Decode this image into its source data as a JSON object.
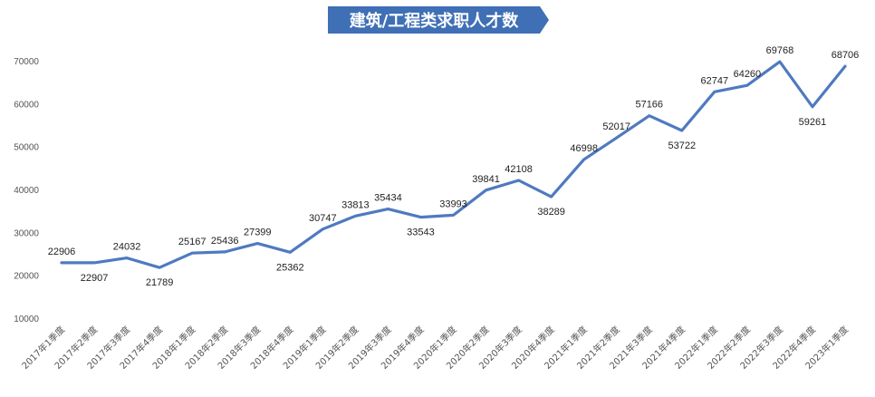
{
  "chart_data": {
    "type": "line",
    "title": "建筑/工程类求职人才数",
    "categories": [
      "2017年1季度",
      "2017年2季度",
      "2017年3季度",
      "2017年4季度",
      "2018年1季度",
      "2018年2季度",
      "2018年3季度",
      "2018年4季度",
      "2019年1季度",
      "2019年2季度",
      "2019年3季度",
      "2019年4季度",
      "2020年1季度",
      "2020年2季度",
      "2020年3季度",
      "2020年4季度",
      "2021年1季度",
      "2021年2季度",
      "2021年3季度",
      "2021年4季度",
      "2022年1季度",
      "2022年2季度",
      "2022年3季度",
      "2022年4季度",
      "2023年1季度"
    ],
    "series": [
      {
        "values": [
          22906,
          22907,
          24032,
          21789,
          25167,
          25436,
          27399,
          25362,
          30747,
          33813,
          35434,
          33543,
          33993,
          39841,
          42108,
          38289,
          46998,
          52017,
          57166,
          53722,
          62747,
          64260,
          69768,
          59261,
          68706
        ]
      }
    ],
    "yticks": [
      "10000",
      "20000",
      "30000",
      "40000",
      "50000",
      "60000",
      "70000"
    ],
    "ylim": [
      10000,
      73000
    ],
    "grid": false,
    "line_color": "#4f7ac0",
    "title_bg": "#3f6fb5",
    "title_color": "#ffffff"
  }
}
